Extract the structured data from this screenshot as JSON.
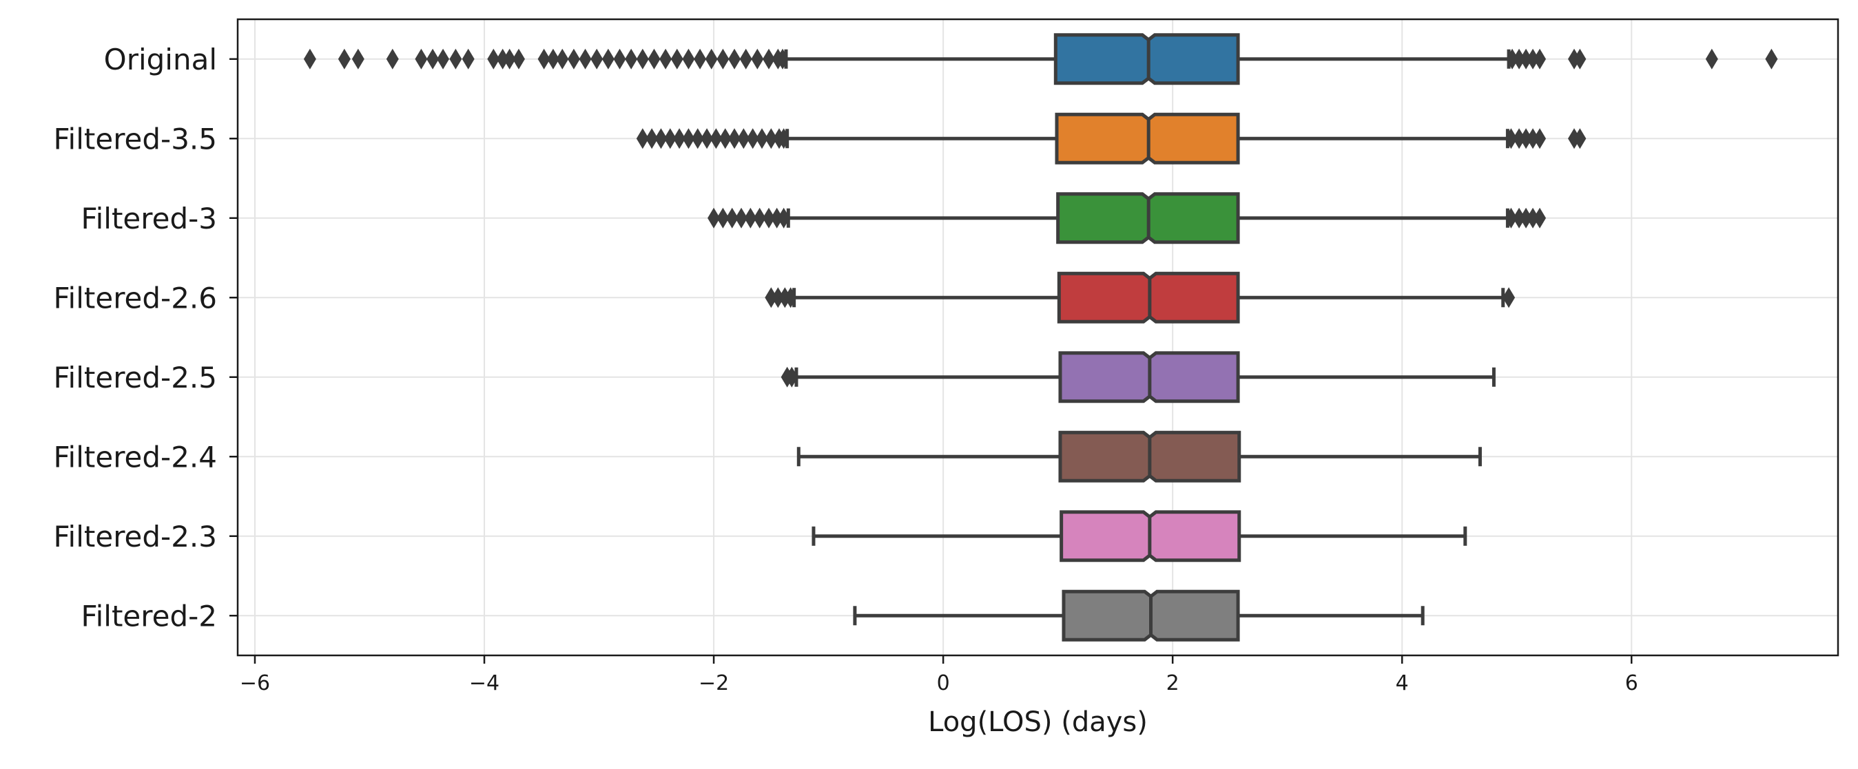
{
  "chart_data": {
    "type": "boxplot",
    "orientation": "horizontal",
    "notched": true,
    "xlabel": "Log(LOS) (days)",
    "ylabel": "",
    "title": "",
    "xlim": [
      -6.15,
      7.8
    ],
    "xticks": [
      -6,
      -4,
      -2,
      0,
      2,
      4,
      6
    ],
    "xtick_labels": [
      "−6",
      "−4",
      "−2",
      "0",
      "2",
      "4",
      "6"
    ],
    "grid": true,
    "categories": [
      "Original",
      "Filtered-3.5",
      "Filtered-3",
      "Filtered-2.6",
      "Filtered-2.5",
      "Filtered-2.4",
      "Filtered-2.3",
      "Filtered-2"
    ],
    "series": [
      {
        "name": "Original",
        "color": "#3274a1",
        "whisker_low": -1.37,
        "q1": 0.98,
        "median": 1.79,
        "q3": 2.57,
        "whisker_high": 4.93,
        "outliers_low": [
          -5.52,
          -5.22,
          -5.1,
          -4.8,
          -4.55,
          -4.45,
          -4.36,
          -4.25,
          -4.14,
          -3.92,
          -3.84,
          -3.78,
          -3.7,
          -3.48,
          -3.4,
          -3.32,
          -3.22,
          -3.12,
          -3.02,
          -2.92,
          -2.82,
          -2.72,
          -2.62,
          -2.52,
          -2.42,
          -2.32,
          -2.22,
          -2.12,
          -2.02,
          -1.92,
          -1.82,
          -1.72,
          -1.62,
          -1.52,
          -1.44,
          -1.4
        ],
        "outliers_high": [
          4.96,
          5.02,
          5.08,
          5.14,
          5.2,
          5.5,
          5.55,
          6.7,
          7.22
        ]
      },
      {
        "name": "Filtered-3.5",
        "color": "#e1812c",
        "whisker_low": -1.36,
        "q1": 0.99,
        "median": 1.79,
        "q3": 2.57,
        "whisker_high": 4.92,
        "outliers_low": [
          -2.62,
          -2.54,
          -2.46,
          -2.38,
          -2.3,
          -2.22,
          -2.14,
          -2.06,
          -1.98,
          -1.9,
          -1.82,
          -1.74,
          -1.66,
          -1.58,
          -1.5,
          -1.43,
          -1.39
        ],
        "outliers_high": [
          4.95,
          5.02,
          5.08,
          5.14,
          5.2,
          5.5,
          5.55
        ]
      },
      {
        "name": "Filtered-3",
        "color": "#3a923a",
        "whisker_low": -1.35,
        "q1": 1.0,
        "median": 1.79,
        "q3": 2.57,
        "whisker_high": 4.92,
        "outliers_low": [
          -2.0,
          -1.92,
          -1.84,
          -1.76,
          -1.68,
          -1.6,
          -1.52,
          -1.45,
          -1.39
        ],
        "outliers_high": [
          4.95,
          5.02,
          5.08,
          5.14,
          5.2
        ]
      },
      {
        "name": "Filtered-2.6",
        "color": "#c03d3e",
        "whisker_low": -1.3,
        "q1": 1.01,
        "median": 1.8,
        "q3": 2.57,
        "whisker_high": 4.88,
        "outliers_low": [
          -1.5,
          -1.44,
          -1.38,
          -1.33
        ],
        "outliers_high": [
          4.93
        ]
      },
      {
        "name": "Filtered-2.5",
        "color": "#9372b2",
        "whisker_low": -1.28,
        "q1": 1.02,
        "median": 1.8,
        "q3": 2.57,
        "whisker_high": 4.8,
        "outliers_low": [
          -1.36,
          -1.32
        ],
        "outliers_high": []
      },
      {
        "name": "Filtered-2.4",
        "color": "#845b53",
        "whisker_low": -1.26,
        "q1": 1.02,
        "median": 1.8,
        "q3": 2.58,
        "whisker_high": 4.68,
        "outliers_low": [],
        "outliers_high": []
      },
      {
        "name": "Filtered-2.3",
        "color": "#d684bd",
        "whisker_low": -1.13,
        "q1": 1.03,
        "median": 1.8,
        "q3": 2.58,
        "whisker_high": 4.55,
        "outliers_low": [],
        "outliers_high": []
      },
      {
        "name": "Filtered-2",
        "color": "#7f7f7f",
        "whisker_low": -0.77,
        "q1": 1.05,
        "median": 1.81,
        "q3": 2.57,
        "whisker_high": 4.18,
        "outliers_low": [],
        "outliers_high": []
      }
    ]
  }
}
